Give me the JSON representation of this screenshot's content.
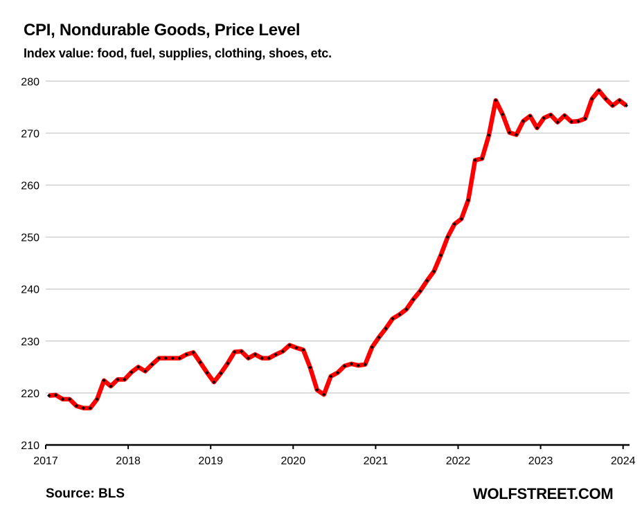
{
  "header": {
    "title": "CPI, Nondurable Goods, Price Level",
    "subtitle": "Index value: food, fuel, supplies, clothing, shoes, etc."
  },
  "footer": {
    "source": "Source: BLS",
    "watermark": "WOLFSTREET.COM"
  },
  "colors": {
    "line": "#FF0000",
    "marker": "#000000",
    "grid": "#D0D0D0",
    "axis": "#000000"
  },
  "chart_data": {
    "type": "line",
    "title": "CPI, Nondurable Goods, Price Level",
    "subtitle": "Index value: food, fuel, supplies, clothing, shoes, etc.",
    "xlabel": "",
    "ylabel": "",
    "ylim": [
      210,
      280
    ],
    "yticks": [
      210,
      220,
      230,
      240,
      250,
      260,
      270,
      280
    ],
    "xlim": [
      "2017-01",
      "2024-01"
    ],
    "xticks": [
      "2017",
      "2018",
      "2019",
      "2020",
      "2021",
      "2022",
      "2023",
      "2024"
    ],
    "grid": "horizontal",
    "legend": "none",
    "start": "2017-01",
    "frequency": "monthly",
    "series": [
      {
        "name": "CPI Nondurable Goods",
        "values": [
          219.5,
          219.6,
          218.8,
          218.8,
          217.5,
          217.1,
          217.1,
          218.8,
          222.4,
          221.3,
          222.6,
          222.6,
          224.0,
          225.0,
          224.2,
          225.5,
          226.7,
          226.7,
          226.7,
          226.7,
          227.4,
          227.8,
          225.9,
          223.9,
          222.1,
          223.8,
          225.7,
          227.9,
          228.0,
          226.7,
          227.4,
          226.7,
          226.7,
          227.4,
          228.0,
          229.2,
          228.7,
          228.3,
          224.9,
          220.6,
          219.7,
          223.2,
          223.9,
          225.2,
          225.6,
          225.3,
          225.5,
          228.8,
          230.7,
          232.4,
          234.3,
          235.1,
          236.1,
          238.0,
          239.6,
          241.6,
          243.4,
          246.5,
          250.0,
          252.5,
          253.5,
          257.1,
          264.8,
          265.1,
          269.6,
          276.3,
          273.6,
          270.1,
          269.7,
          272.3,
          273.3,
          271.0,
          272.9,
          273.5,
          272.1,
          273.4,
          272.2,
          272.3,
          272.8,
          276.6,
          278.2,
          276.6,
          275.3,
          276.3,
          275.3
        ]
      }
    ],
    "source": "Source: BLS"
  }
}
